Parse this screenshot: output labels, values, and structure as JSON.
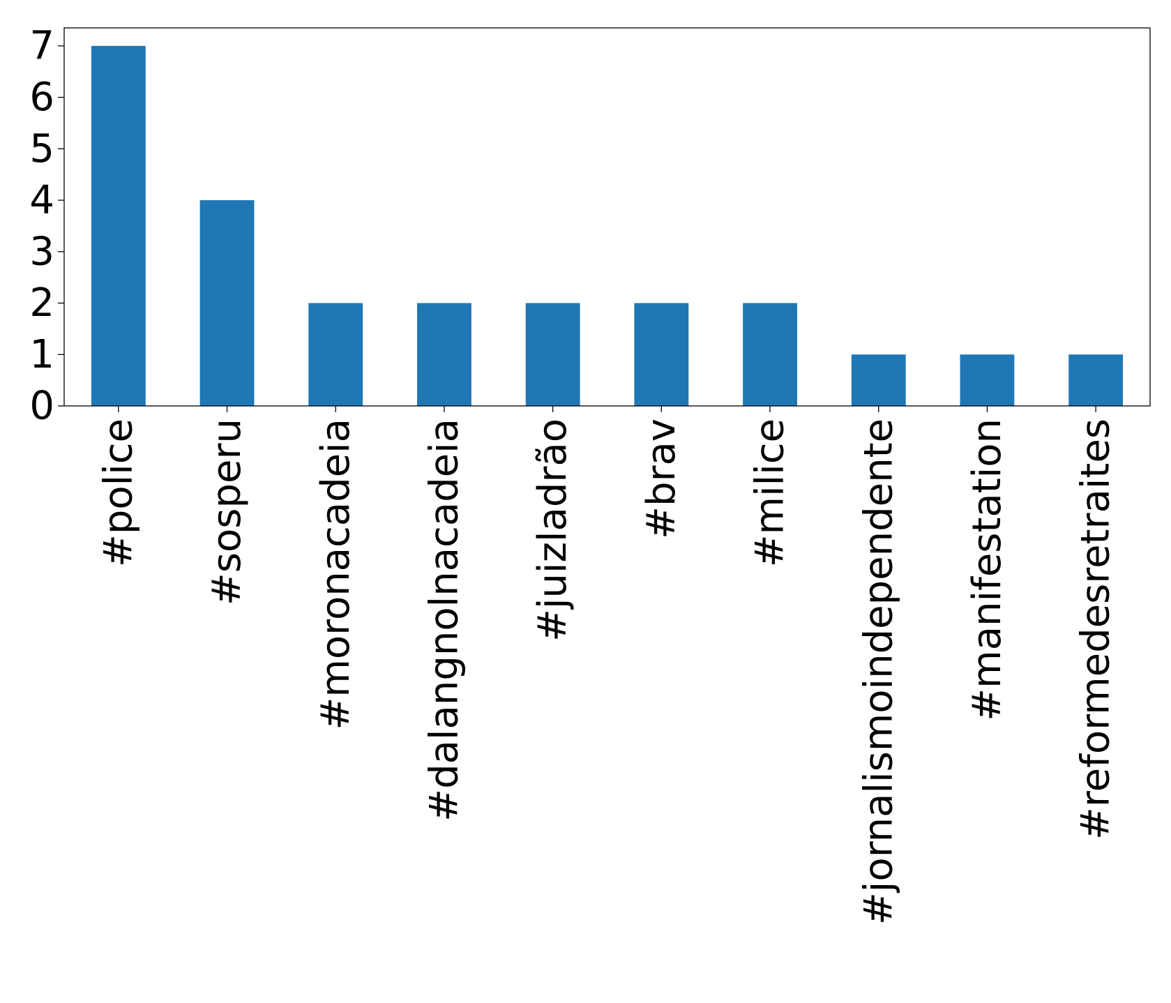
{
  "chart_data": {
    "type": "bar",
    "title": "",
    "xlabel": "",
    "ylabel": "",
    "categories": [
      "#police",
      "#sosperu",
      "#moronacadeia",
      "#dalangnolnacadeia",
      "#juizladrão",
      "#brav",
      "#milice",
      "#jornalismoindependente",
      "#manifestation",
      "#reformedesretraites"
    ],
    "values": [
      7,
      4,
      2,
      2,
      2,
      2,
      2,
      1,
      1,
      1
    ],
    "ylim": [
      0,
      7.35
    ],
    "yticks": [
      0,
      1,
      2,
      3,
      4,
      5,
      6,
      7
    ],
    "bar_color": "#1f77b4",
    "grid": false,
    "legend": "none"
  }
}
